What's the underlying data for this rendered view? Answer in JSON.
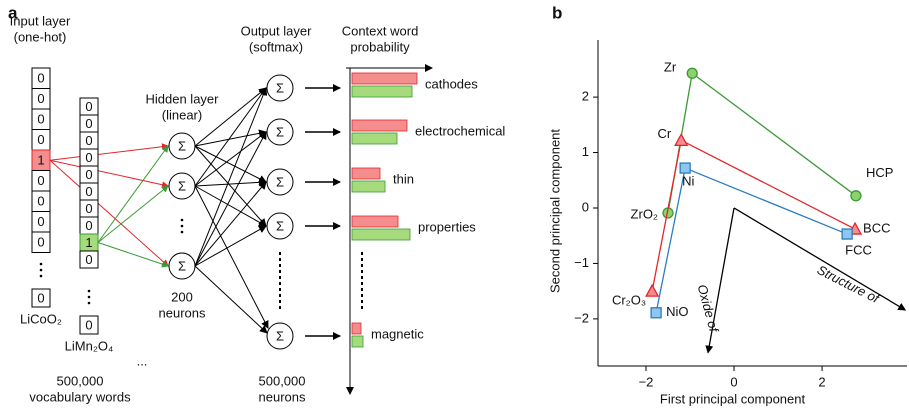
{
  "panel_labels": [
    "a",
    "b"
  ],
  "panel_a": {
    "input_title": [
      "Input layer",
      "(one-hot)"
    ],
    "hidden_title": [
      "Hidden layer",
      "(linear)"
    ],
    "output_title": [
      "Output layer",
      "(softmax)"
    ],
    "context_title": [
      "Context word",
      "probability"
    ],
    "input_vectors": [
      {
        "bits": [
          0,
          0,
          0,
          0,
          1,
          0,
          0,
          0,
          0
        ],
        "last": 0,
        "word": "LiCoO₂"
      },
      {
        "bits": [
          0,
          0,
          0,
          0,
          0,
          0,
          0,
          0,
          1,
          0
        ],
        "last": 0,
        "word": "LiMn₂O₄"
      }
    ],
    "ellipsis": "...",
    "vocab_note": [
      "500,000",
      "vocabulary words"
    ],
    "neuron_symbol": "Σ",
    "hidden_note": [
      "200",
      "neurons"
    ],
    "output_note": [
      "500,000",
      "neurons"
    ],
    "context_words": [
      {
        "word": "cathodes",
        "red": 65,
        "green": 60
      },
      {
        "word": "electrochemical",
        "red": 55,
        "green": 45
      },
      {
        "word": "thin",
        "red": 28,
        "green": 33
      },
      {
        "word": "properties",
        "red": 46,
        "green": 58
      },
      {
        "word": "magnetic",
        "red": 9,
        "green": 11
      }
    ]
  },
  "chart_data": {
    "type": "scatter",
    "xlabel": "First principal component",
    "ylabel": "Second principal component",
    "xlim": [
      -3.09,
      3.93
    ],
    "ylim": [
      -2.85,
      3.03
    ],
    "xticks": [
      {
        "value": -2,
        "label": "−2"
      },
      0,
      2
    ],
    "yticks": [
      {
        "value": -2,
        "label": "−2"
      },
      {
        "value": -1,
        "label": "−1"
      },
      0,
      1,
      2
    ],
    "series": [
      {
        "marker": "circle",
        "color": "#3a9a35",
        "fill": "#8fd16a",
        "labels": [
          "Zr",
          "HCP",
          "ZrO₂"
        ],
        "x": [
          -0.95,
          2.77,
          -1.5
        ],
        "y": [
          2.43,
          0.22,
          -0.09
        ]
      },
      {
        "marker": "triangle",
        "color": "#e3262b",
        "fill": "#f48d8d",
        "labels": [
          "Cr",
          "BCC",
          "Cr₂O₃"
        ],
        "x": [
          -1.2,
          2.75,
          -1.86
        ],
        "y": [
          1.22,
          -0.38,
          -1.5
        ]
      },
      {
        "marker": "square",
        "color": "#2b7cc0",
        "fill": "#8ec6ef",
        "labels": [
          "Ni",
          "FCC",
          "NiO"
        ],
        "x": [
          -1.11,
          2.57,
          -1.77
        ],
        "y": [
          0.72,
          -0.47,
          -1.89
        ]
      }
    ],
    "arrows": [
      {
        "label": "Oxide of",
        "x": [
          0,
          -0.59
        ],
        "y": [
          0,
          -2.61
        ]
      },
      {
        "label": "Structure of",
        "x": [
          0,
          3.89
        ],
        "y": [
          0,
          -1.84
        ]
      }
    ]
  }
}
